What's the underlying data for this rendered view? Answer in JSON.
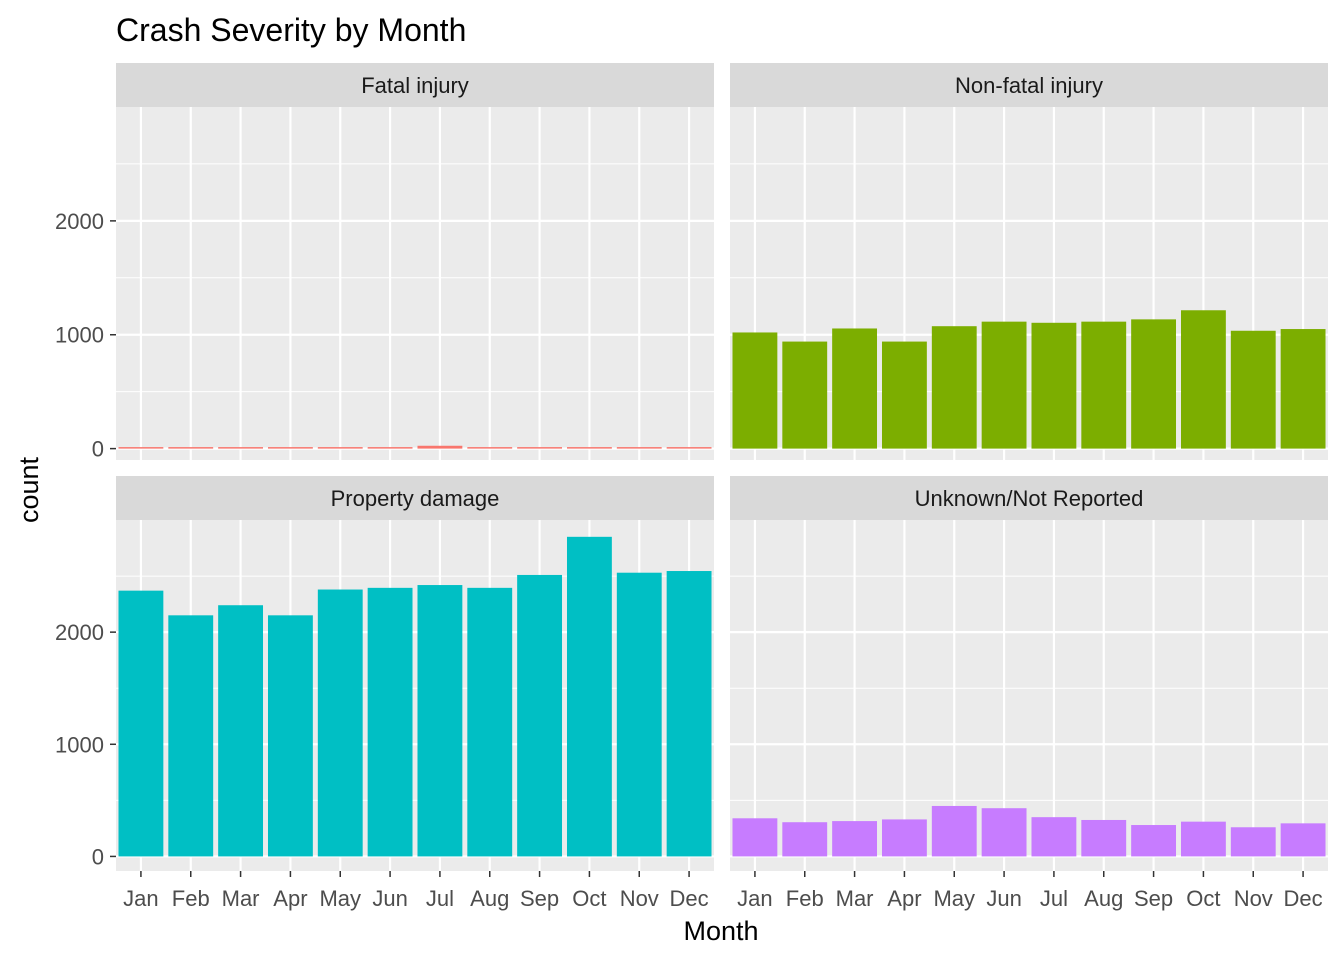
{
  "chart_data": {
    "type": "bar",
    "title": "Crash Severity by Month",
    "xlabel": "Month",
    "ylabel": "count",
    "categories": [
      "Jan",
      "Feb",
      "Mar",
      "Apr",
      "May",
      "Jun",
      "Jul",
      "Aug",
      "Sep",
      "Oct",
      "Nov",
      "Dec"
    ],
    "y_ticks": [
      0,
      1000,
      2000
    ],
    "facets": [
      {
        "label": "Fatal injury",
        "color": "#F8766D",
        "ylim": [
          -100,
          3000
        ],
        "values": [
          12,
          10,
          11,
          10,
          12,
          13,
          25,
          12,
          11,
          10,
          10,
          11
        ]
      },
      {
        "label": "Non-fatal injury",
        "color": "#7CAE00",
        "ylim": [
          -100,
          3000
        ],
        "values": [
          1020,
          940,
          1055,
          940,
          1075,
          1115,
          1105,
          1115,
          1135,
          1215,
          1035,
          1050
        ]
      },
      {
        "label": "Property damage",
        "color": "#00BFC4",
        "ylim": [
          -130,
          3000
        ],
        "values": [
          2370,
          2150,
          2240,
          2150,
          2380,
          2395,
          2420,
          2395,
          2510,
          2850,
          2530,
          2545
        ]
      },
      {
        "label": "Unknown/Not Reported",
        "color": "#C77CFF",
        "ylim": [
          -130,
          3000
        ],
        "values": [
          340,
          305,
          315,
          330,
          450,
          430,
          350,
          325,
          280,
          310,
          260,
          295
        ]
      }
    ],
    "grid": true,
    "legend": "none"
  }
}
